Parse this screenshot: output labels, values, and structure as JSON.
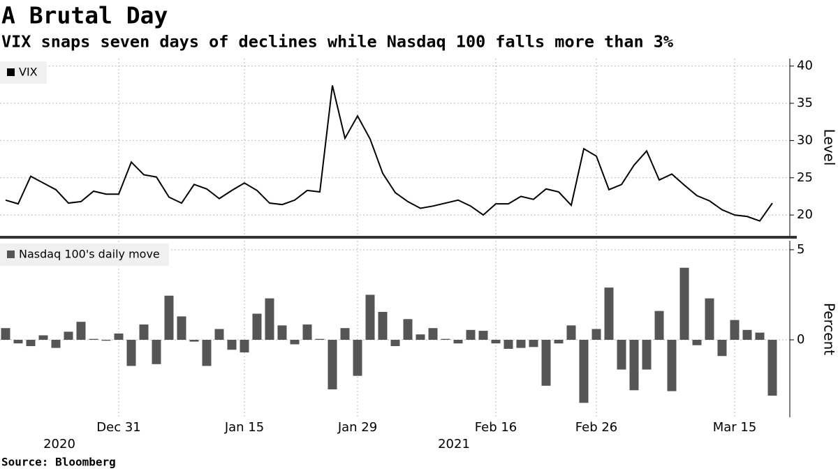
{
  "title": "A Brutal Day",
  "subtitle": "VIX snaps seven days of declines while Nasdaq 100 falls more than 3%",
  "source": "Source:  Bloomberg",
  "chart_data": [
    {
      "type": "line",
      "y_label": "Level",
      "series": [
        {
          "name": "VIX",
          "color": "#000000",
          "values": [
            22.0,
            21.5,
            25.2,
            24.3,
            23.4,
            21.6,
            21.8,
            23.2,
            22.8,
            22.8,
            27.1,
            25.4,
            25.1,
            22.4,
            21.6,
            24.1,
            23.5,
            22.2,
            23.3,
            24.3,
            23.3,
            21.6,
            21.4,
            22.0,
            23.3,
            23.1,
            37.4,
            30.3,
            33.3,
            30.2,
            25.6,
            23.0,
            21.8,
            20.9,
            21.2,
            21.6,
            22.0,
            21.2,
            20.0,
            21.5,
            21.5,
            22.5,
            22.1,
            23.5,
            23.1,
            21.3,
            28.9,
            27.9,
            23.4,
            24.1,
            26.7,
            28.6,
            24.7,
            25.5,
            24.0,
            22.6,
            21.9,
            20.7,
            20.0,
            19.8,
            19.2,
            21.6
          ]
        }
      ],
      "ylim": [
        17.2,
        41
      ],
      "yticks": [
        20,
        25,
        30,
        35,
        40
      ],
      "grid": true
    },
    {
      "type": "bar",
      "y_label": "Percent",
      "categories": [
        null,
        null,
        null,
        null,
        null,
        null,
        null,
        null,
        null,
        "Dec 31",
        null,
        null,
        null,
        null,
        null,
        null,
        null,
        null,
        null,
        "Jan 15",
        null,
        null,
        null,
        null,
        null,
        null,
        null,
        null,
        "Jan 29",
        null,
        null,
        null,
        null,
        null,
        null,
        null,
        null,
        null,
        null,
        "Feb 16",
        null,
        null,
        null,
        null,
        null,
        null,
        null,
        "Feb 26",
        null,
        null,
        null,
        null,
        null,
        null,
        null,
        null,
        null,
        null,
        "Mar 15",
        null,
        null,
        null
      ],
      "years": [
        "2020",
        "2021"
      ],
      "series": [
        {
          "name": "Nasdaq 100's daily move",
          "color": "#555555",
          "values": [
            0.65,
            -0.2,
            -0.35,
            0.25,
            -0.45,
            0.45,
            1.0,
            0.05,
            -0.05,
            0.35,
            -1.45,
            0.85,
            -1.35,
            2.45,
            1.3,
            -0.1,
            -1.45,
            0.6,
            -0.55,
            -0.7,
            1.45,
            2.3,
            0.8,
            -0.25,
            0.85,
            0.05,
            -2.75,
            0.65,
            -2.0,
            2.5,
            1.55,
            -0.35,
            1.15,
            0.3,
            0.65,
            0.05,
            -0.2,
            0.55,
            0.5,
            -0.2,
            -0.5,
            -0.45,
            -0.4,
            -2.55,
            -0.2,
            0.8,
            -3.5,
            0.6,
            2.9,
            -1.65,
            -2.8,
            -1.65,
            1.6,
            -2.85,
            4.0,
            -0.3,
            2.3,
            -0.9,
            1.1,
            0.55,
            0.4,
            -3.1
          ]
        }
      ],
      "ylim": [
        -4.3,
        5.5
      ],
      "yticks": [
        0,
        5
      ],
      "grid": true
    }
  ]
}
